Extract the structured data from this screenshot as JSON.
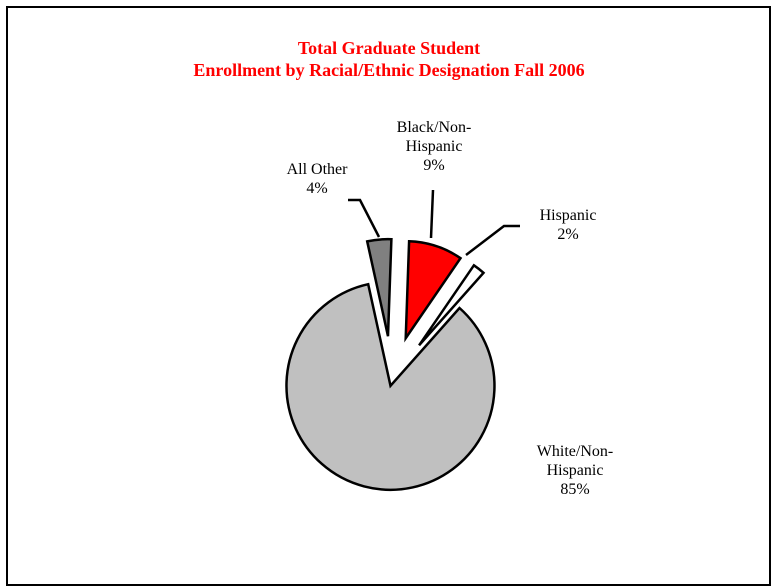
{
  "chart_data": {
    "type": "pie",
    "title_line1": "Total Graduate Student",
    "title_line2": "Enrollment by Racial/Ethnic Designation Fall 2006",
    "slices": [
      {
        "label_lines": [
          "Black/Non-",
          "Hispanic"
        ],
        "percent_label": "9%",
        "value": 9,
        "color": "#ff0000"
      },
      {
        "label_lines": [
          "Hispanic"
        ],
        "percent_label": "2%",
        "value": 2,
        "color": "#ffffff"
      },
      {
        "label_lines": [
          "White/Non-",
          "Hispanic"
        ],
        "percent_label": "85%",
        "value": 85,
        "color": "#c0c0c0"
      },
      {
        "label_lines": [
          "All Other"
        ],
        "percent_label": "4%",
        "value": 4,
        "color": "#808080"
      }
    ]
  },
  "colors": {
    "title": "#ff0000",
    "border": "#000000",
    "outline": "#000000"
  }
}
